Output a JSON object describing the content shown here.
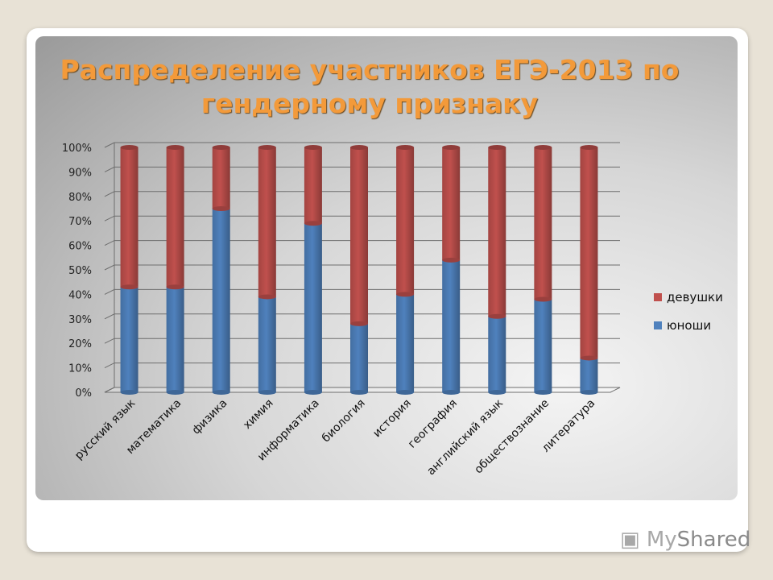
{
  "chart_data": {
    "type": "bar",
    "stacked": true,
    "title": "Распределение участников ЕГЭ-2013 по гендерному признаку",
    "categories": [
      "русский язык",
      "математика",
      "физика",
      "химия",
      "информатика",
      "биология",
      "история",
      "география",
      "английский язык",
      "обществознание",
      "литература"
    ],
    "series": [
      {
        "name": "юноши",
        "values": [
          43,
          43,
          75,
          39,
          69,
          28,
          40,
          54,
          31,
          38,
          14
        ],
        "color": "#4f81bd"
      },
      {
        "name": "девушки",
        "values": [
          57,
          57,
          25,
          61,
          31,
          72,
          60,
          46,
          69,
          62,
          86
        ],
        "color": "#c0504d"
      }
    ],
    "ylim": [
      0,
      100
    ],
    "yticks": [
      "0%",
      "10%",
      "20%",
      "30%",
      "40%",
      "50%",
      "60%",
      "70%",
      "80%",
      "90%",
      "100%"
    ],
    "grid": true,
    "legend_position": "right",
    "legend_order": [
      "девушки",
      "юноши"
    ]
  },
  "watermark": {
    "part1": "My",
    "part2": "Shared"
  }
}
